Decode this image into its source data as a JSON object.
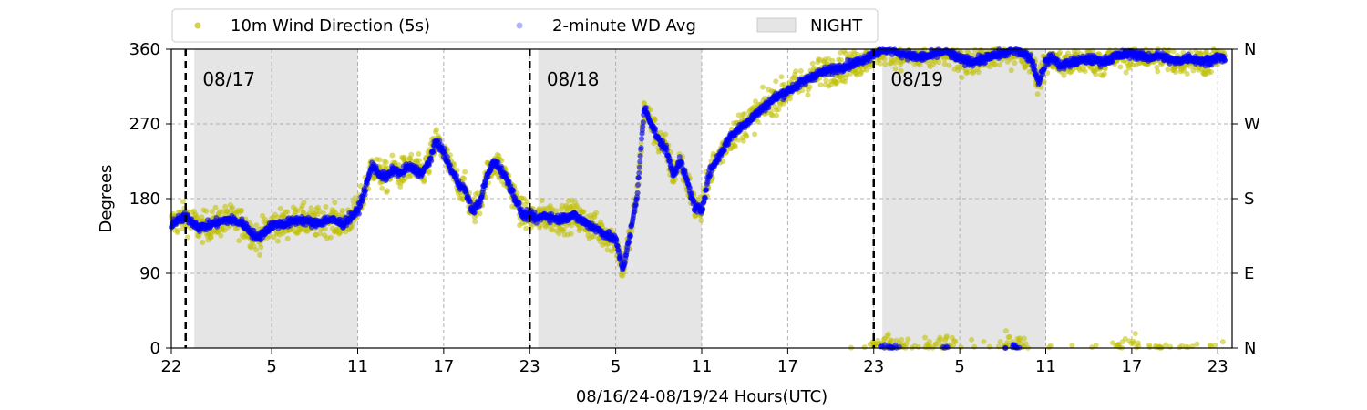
{
  "chart_data": {
    "type": "scatter",
    "title": "",
    "xlabel": "08/16/24-08/19/24  Hours(UTC)",
    "ylabel": "Degrees",
    "x_unit": "hours (UTC) from 08/16/24 00:00",
    "xlim": [
      22,
      96
    ],
    "ylim": [
      0,
      360
    ],
    "x_ticks": [
      {
        "x": 22,
        "label": "22"
      },
      {
        "x": 29,
        "label": "5"
      },
      {
        "x": 35,
        "label": "11"
      },
      {
        "x": 41,
        "label": "17"
      },
      {
        "x": 47,
        "label": "23"
      },
      {
        "x": 53,
        "label": "5"
      },
      {
        "x": 59,
        "label": "11"
      },
      {
        "x": 65,
        "label": "17"
      },
      {
        "x": 71,
        "label": "23"
      },
      {
        "x": 77,
        "label": "5"
      },
      {
        "x": 83,
        "label": "11"
      },
      {
        "x": 89,
        "label": "17"
      },
      {
        "x": 95,
        "label": "23"
      }
    ],
    "y_ticks": [
      {
        "y": 0,
        "label": "0"
      },
      {
        "y": 90,
        "label": "90"
      },
      {
        "y": 180,
        "label": "180"
      },
      {
        "y": 270,
        "label": "270"
      },
      {
        "y": 360,
        "label": "360"
      }
    ],
    "y2_ticks": [
      {
        "y": 0,
        "label": "N"
      },
      {
        "y": 90,
        "label": "E"
      },
      {
        "y": 180,
        "label": "S"
      },
      {
        "y": 270,
        "label": "W"
      },
      {
        "y": 360,
        "label": "N"
      }
    ],
    "grid": true,
    "legend_position": "top",
    "night_periods": [
      [
        23.6,
        35
      ],
      [
        47.6,
        59
      ],
      [
        71.6,
        83
      ]
    ],
    "day_markers": [
      {
        "x": 23,
        "label": ""
      },
      {
        "x": 47,
        "label": ""
      },
      {
        "x": 71,
        "label": ""
      }
    ],
    "day_labels": [
      {
        "x": 23.8,
        "label": "08/17"
      },
      {
        "x": 47.8,
        "label": "08/18"
      },
      {
        "x": 71.8,
        "label": "08/19"
      }
    ],
    "legend": [
      {
        "key": "raw",
        "label": "10m Wind Direction (5s)",
        "kind": "marker"
      },
      {
        "key": "avg",
        "label": "2-minute WD Avg",
        "kind": "marker"
      },
      {
        "key": "night",
        "label": "NIGHT",
        "kind": "patch"
      }
    ],
    "series": [
      {
        "key": "raw",
        "name": "10m Wind Direction (5s)",
        "color": "#bfbf00",
        "spread": 30,
        "x": [
          22,
          23,
          24,
          25,
          26,
          27,
          28,
          29,
          30,
          31,
          32,
          33,
          34,
          35,
          35.5,
          36,
          36.5,
          37,
          37.5,
          38,
          38.5,
          39,
          39.5,
          40,
          40.5,
          41,
          41.5,
          42,
          42.5,
          43,
          43.5,
          44,
          44.5,
          45,
          45.5,
          46,
          46.5,
          47,
          47.5,
          48,
          49,
          50,
          51,
          52,
          53,
          53.5,
          54,
          54.5,
          55,
          55.5,
          56,
          56.5,
          57,
          57.5,
          58,
          58.5,
          59,
          59.5,
          60,
          60.5,
          61,
          62,
          63,
          64,
          65,
          66,
          67,
          68,
          69,
          70,
          71,
          72,
          73,
          74,
          75,
          76,
          77,
          78,
          79,
          80,
          81,
          82,
          82.5,
          83,
          83.5,
          84,
          85,
          86,
          87,
          88,
          89,
          90,
          91,
          92,
          93,
          94,
          95,
          95.5
        ],
        "values": [
          150,
          158,
          145,
          150,
          155,
          150,
          132,
          148,
          150,
          155,
          150,
          155,
          150,
          165,
          190,
          220,
          210,
          205,
          215,
          210,
          218,
          215,
          210,
          225,
          250,
          235,
          215,
          200,
          190,
          165,
          175,
          205,
          225,
          215,
          200,
          180,
          160,
          160,
          155,
          160,
          155,
          160,
          150,
          140,
          130,
          95,
          135,
          185,
          290,
          270,
          250,
          240,
          210,
          225,
          200,
          170,
          165,
          210,
          225,
          240,
          255,
          270,
          285,
          300,
          310,
          320,
          330,
          335,
          340,
          345,
          355,
          360,
          355,
          350,
          352,
          358,
          348,
          345,
          350,
          355,
          360,
          348,
          320,
          345,
          350,
          340,
          345,
          348,
          345,
          352,
          355,
          350,
          352,
          345,
          350,
          345,
          350,
          348
        ]
      },
      {
        "key": "avg",
        "name": "2-minute WD Avg",
        "color": "#0000ff",
        "spread": 9,
        "x": [
          22,
          23,
          24,
          25,
          26,
          27,
          28,
          29,
          30,
          31,
          32,
          33,
          34,
          35,
          35.5,
          36,
          36.5,
          37,
          37.5,
          38,
          38.5,
          39,
          39.5,
          40,
          40.5,
          41,
          41.5,
          42,
          42.5,
          43,
          43.5,
          44,
          44.5,
          45,
          45.5,
          46,
          46.5,
          47,
          47.5,
          48,
          49,
          50,
          51,
          52,
          53,
          53.5,
          54,
          54.5,
          55,
          55.5,
          56,
          56.5,
          57,
          57.5,
          58,
          58.5,
          59,
          59.5,
          60,
          60.5,
          61,
          62,
          63,
          64,
          65,
          66,
          67,
          68,
          69,
          70,
          71,
          72,
          73,
          74,
          75,
          76,
          77,
          78,
          79,
          80,
          81,
          82,
          82.5,
          83,
          83.5,
          84,
          85,
          86,
          87,
          88,
          89,
          90,
          91,
          92,
          93,
          94,
          95,
          95.5
        ],
        "values": [
          150,
          158,
          145,
          150,
          155,
          150,
          132,
          148,
          150,
          155,
          150,
          155,
          150,
          165,
          190,
          220,
          210,
          205,
          215,
          210,
          218,
          215,
          210,
          225,
          250,
          235,
          215,
          200,
          190,
          165,
          175,
          205,
          225,
          215,
          200,
          180,
          160,
          160,
          155,
          160,
          155,
          160,
          150,
          140,
          130,
          95,
          135,
          185,
          290,
          270,
          250,
          240,
          210,
          225,
          200,
          170,
          165,
          210,
          225,
          240,
          255,
          270,
          285,
          300,
          310,
          320,
          330,
          335,
          340,
          345,
          355,
          360,
          355,
          350,
          352,
          358,
          348,
          345,
          350,
          355,
          360,
          348,
          320,
          345,
          350,
          340,
          345,
          348,
          345,
          352,
          355,
          350,
          352,
          345,
          350,
          345,
          350,
          348
        ]
      }
    ]
  }
}
